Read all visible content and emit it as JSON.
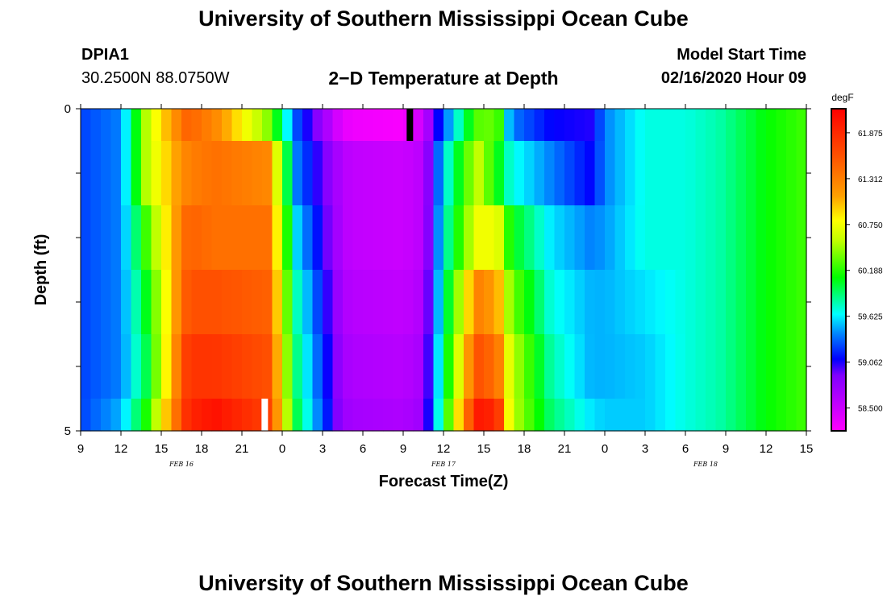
{
  "header": {
    "title": "University of Southern Mississippi Ocean Cube",
    "station_id": "DPIA1",
    "coordinates": "30.2500N 88.0750W",
    "plot_title": "2−D Temperature at Depth",
    "model_start_label": "Model Start Time",
    "model_start_value": "02/16/2020 Hour 09"
  },
  "footer": {
    "title": "University of Southern Mississippi Ocean Cube"
  },
  "chart_data": {
    "type": "heatmap",
    "title": "2−D Temperature at Depth",
    "xlabel": "Forecast Time(Z)",
    "ylabel": "Depth (ft)",
    "units": "degF",
    "x_start_hour": 9,
    "x_range_hours": [
      0,
      54
    ],
    "y_range_ft": [
      0,
      5
    ],
    "x_tick_labels": [
      "9",
      "12",
      "15",
      "18",
      "21",
      "0",
      "3",
      "6",
      "9",
      "12",
      "15",
      "18",
      "21",
      "0",
      "3",
      "6",
      "9",
      "12",
      "15"
    ],
    "y_tick_labels": [
      "0",
      "5"
    ],
    "date_labels": [
      {
        "label": "FEB 16",
        "hour": 7.5
      },
      {
        "label": "FEB 17",
        "hour": 27
      },
      {
        "label": "FEB 18",
        "hour": 46.5
      }
    ],
    "colorbar": {
      "min": 58.22,
      "max": 62.17,
      "tick_labels": [
        "61.875",
        "61.312",
        "60.750",
        "60.188",
        "59.625",
        "59.062",
        "58.500"
      ]
    },
    "depth_layers": [
      "0-0.5",
      "0.5-1.5",
      "1.5-2.5",
      "2.5-3.5",
      "3.5-4.5",
      "4.5-5"
    ],
    "key_points_hours": [
      0,
      3,
      5,
      8,
      10,
      14,
      16,
      19.5,
      20.5,
      24,
      25.5,
      27,
      29.5,
      31,
      32,
      35,
      38,
      39,
      42,
      45,
      47.5,
      51,
      54
    ],
    "temperature_degF": [
      [
        59.25,
        59.4,
        60.6,
        61.5,
        61.25,
        60.4,
        59.3,
        58.35,
        58.3,
        58.25,
        58.5,
        59.3,
        60.3,
        60.35,
        59.4,
        59.1,
        59.05,
        59.4,
        59.7,
        59.7,
        59.8,
        60.1,
        60.25
      ],
      [
        59.25,
        59.4,
        60.6,
        61.3,
        61.4,
        61.25,
        59.4,
        58.6,
        58.55,
        58.5,
        58.6,
        59.6,
        60.6,
        60.1,
        59.7,
        59.4,
        59.1,
        59.4,
        59.7,
        59.7,
        59.8,
        60.1,
        60.25
      ],
      [
        59.25,
        59.4,
        60.3,
        61.5,
        61.4,
        61.4,
        59.6,
        58.6,
        58.55,
        58.5,
        58.6,
        59.7,
        60.75,
        60.75,
        60.1,
        59.6,
        59.4,
        59.45,
        59.7,
        59.7,
        59.8,
        60.1,
        60.25
      ],
      [
        59.25,
        59.4,
        60.1,
        61.6,
        61.6,
        61.5,
        59.8,
        58.65,
        58.6,
        58.55,
        58.65,
        59.8,
        61.3,
        61.1,
        60.4,
        59.7,
        59.5,
        59.5,
        59.6,
        59.7,
        59.8,
        60.1,
        60.25
      ],
      [
        59.25,
        59.4,
        60.0,
        61.8,
        61.8,
        61.6,
        59.9,
        58.7,
        58.65,
        58.6,
        58.7,
        59.9,
        61.6,
        61.4,
        60.6,
        59.8,
        59.5,
        59.5,
        59.55,
        59.7,
        59.8,
        60.1,
        60.25
      ],
      [
        59.25,
        59.5,
        60.2,
        61.9,
        62.05,
        61.7,
        60.0,
        58.75,
        58.7,
        58.65,
        58.75,
        60.0,
        62.0,
        61.9,
        60.6,
        59.9,
        59.6,
        59.55,
        59.55,
        59.7,
        59.8,
        60.1,
        60.25
      ]
    ],
    "markers": [
      {
        "name": "forecast-start-marker",
        "hour": 24.5,
        "depth_from_ft": 0,
        "depth_to_ft": 0.5,
        "color": "#000000"
      },
      {
        "name": "now-marker",
        "hour": 13.7,
        "depth_from_ft": 4.5,
        "depth_to_ft": 5,
        "color": "#ffffff"
      }
    ],
    "color_stops": [
      {
        "v": 58.22,
        "c": "#ff00ff"
      },
      {
        "v": 58.9,
        "c": "#8000ff"
      },
      {
        "v": 59.1,
        "c": "#0000ff"
      },
      {
        "v": 59.4,
        "c": "#0080ff"
      },
      {
        "v": 59.65,
        "c": "#00ffff"
      },
      {
        "v": 60.1,
        "c": "#00ff00"
      },
      {
        "v": 60.55,
        "c": "#c0ff00"
      },
      {
        "v": 60.8,
        "c": "#ffff00"
      },
      {
        "v": 61.1,
        "c": "#ffa000"
      },
      {
        "v": 61.6,
        "c": "#ff5000"
      },
      {
        "v": 62.17,
        "c": "#ff0000"
      }
    ]
  }
}
